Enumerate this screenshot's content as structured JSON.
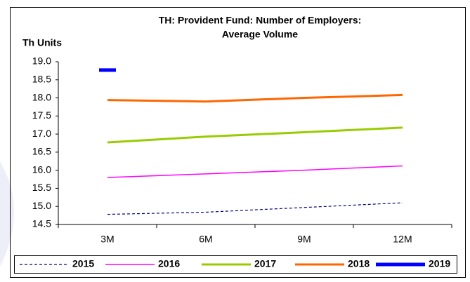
{
  "chart_data": {
    "type": "line",
    "title": "TH: Provident Fund: Number of Employers:",
    "subtitle": "Average Volume",
    "y_label": "Th Units",
    "categories": [
      "3M",
      "6M",
      "9M",
      "12M"
    ],
    "ylim": [
      14.5,
      19.0
    ],
    "yticks": [
      14.5,
      {
        "value": 15.0,
        "label": "15.0"
      },
      15.5,
      {
        "value": 16.0,
        "label": "16.0"
      },
      16.5,
      {
        "value": 17.0,
        "label": "17.0"
      },
      17.5,
      {
        "value": 18.0,
        "label": "18.0"
      },
      18.5,
      {
        "value": 19.0,
        "label": "19.0"
      }
    ],
    "grid": false,
    "legend": "bottom",
    "series": [
      {
        "name": "2015",
        "color": "#000080",
        "dashed": true,
        "values": [
          14.78,
          14.84,
          14.97,
          15.1
        ]
      },
      {
        "name": "2016",
        "color": "#ff00ff",
        "values": [
          15.8,
          15.9,
          16.0,
          16.12
        ]
      },
      {
        "name": "2017",
        "color": "#99cc00",
        "values": [
          16.77,
          16.93,
          17.05,
          17.18
        ]
      },
      {
        "name": "2018",
        "color": "#ff6600",
        "values": [
          17.94,
          17.9,
          18.0,
          18.08
        ]
      },
      {
        "name": "2019",
        "color": "#0000ff",
        "values": [
          18.77,
          null,
          null,
          null
        ]
      }
    ]
  }
}
